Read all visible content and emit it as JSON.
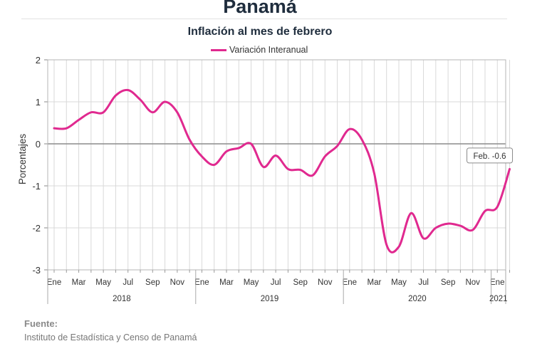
{
  "header": {
    "title": "Panamá",
    "subtitle": "Inflación al mes de febrero"
  },
  "source": {
    "label": "Fuente:",
    "text": "Instituto de Estadística y Censo de Panamá"
  },
  "chart_data": {
    "type": "line",
    "ylabel": "Porcentajes",
    "ylim": [
      -3,
      2
    ],
    "yticks": [
      2,
      1,
      0,
      -1,
      -2,
      -3
    ],
    "grid": true,
    "legend_position": "top-center",
    "month_labels": [
      "Ene",
      "Mar",
      "May",
      "Jul",
      "Sep",
      "Nov",
      "Ene",
      "Mar",
      "May",
      "Jul",
      "Sep",
      "Nov",
      "Ene",
      "Mar",
      "May",
      "Jul",
      "Sep",
      "Nov",
      "Ene"
    ],
    "year_labels": [
      "2018",
      "2019",
      "2020",
      "2021"
    ],
    "x": [
      "2018-01",
      "2018-02",
      "2018-03",
      "2018-04",
      "2018-05",
      "2018-06",
      "2018-07",
      "2018-08",
      "2018-09",
      "2018-10",
      "2018-11",
      "2018-12",
      "2019-01",
      "2019-02",
      "2019-03",
      "2019-04",
      "2019-05",
      "2019-06",
      "2019-07",
      "2019-08",
      "2019-09",
      "2019-10",
      "2019-11",
      "2019-12",
      "2020-01",
      "2020-02",
      "2020-03",
      "2020-04",
      "2020-05",
      "2020-06",
      "2020-07",
      "2020-08",
      "2020-09",
      "2020-10",
      "2020-11",
      "2020-12",
      "2021-01",
      "2021-02"
    ],
    "series": [
      {
        "name": "Variación Interanual",
        "color": "#e0298f",
        "values": [
          0.37,
          0.37,
          0.57,
          0.75,
          0.75,
          1.15,
          1.28,
          1.05,
          0.75,
          1.0,
          0.75,
          0.1,
          -0.3,
          -0.5,
          -0.18,
          -0.1,
          0.0,
          -0.55,
          -0.28,
          -0.6,
          -0.62,
          -0.75,
          -0.3,
          -0.05,
          0.35,
          0.1,
          -0.7,
          -2.4,
          -2.45,
          -1.65,
          -2.25,
          -2.0,
          -1.9,
          -1.95,
          -2.05,
          -1.6,
          -1.5,
          -0.6
        ]
      }
    ],
    "annotation": "Feb. -0.6"
  }
}
